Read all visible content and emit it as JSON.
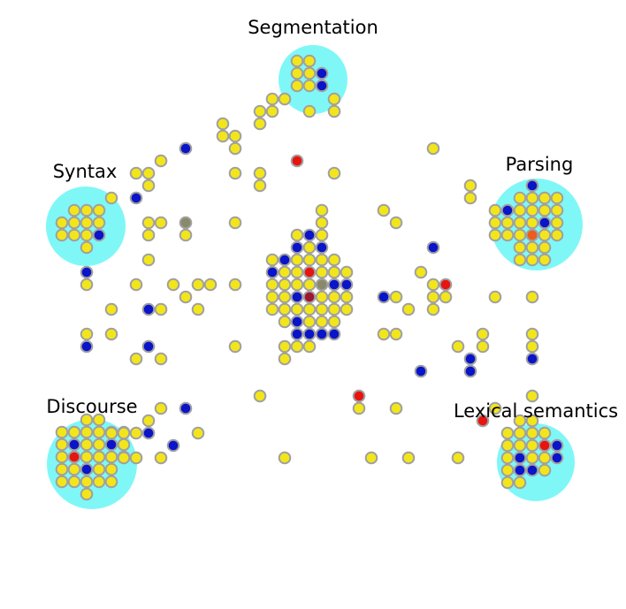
{
  "colors": {
    "halo": "#7ff7f7",
    "dot_stroke": "#a0a0a0",
    "yellow": "#f2e61a",
    "blue": "#0a14c8",
    "red": "#e8140f",
    "grey": "#8a8a6a",
    "orange": "#ee5c1a",
    "dark_red": "#a01530"
  },
  "labels": {
    "segmentation": "Segmentation",
    "syntax": "Syntax",
    "parsing": "Parsing",
    "discourse": "Discourse",
    "lexical_semantics": "Lexical semantics"
  }
}
